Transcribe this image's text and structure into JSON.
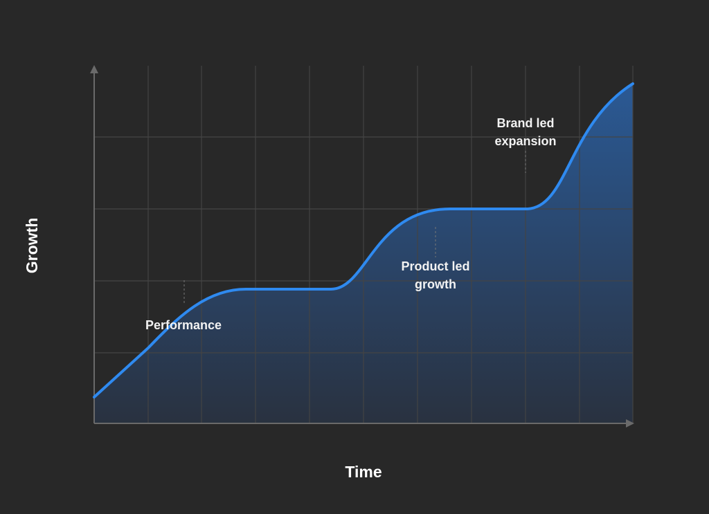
{
  "axis_labels": {
    "y": "Growth",
    "x": "Time"
  },
  "annotations": [
    {
      "lines": [
        "Performance"
      ]
    },
    {
      "lines": [
        "Product led",
        "growth"
      ]
    },
    {
      "lines": [
        "Brand led",
        "expansion"
      ]
    }
  ]
}
